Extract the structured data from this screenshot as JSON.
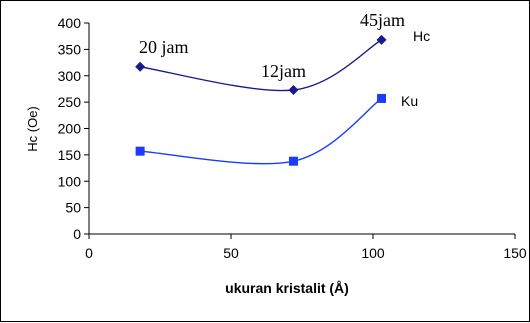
{
  "chart_data": {
    "type": "line",
    "xlabel": "ukuran kristalit (Å)",
    "ylabel": "Hc (Oe)",
    "xlim": [
      0,
      150
    ],
    "ylim": [
      0,
      400
    ],
    "x_ticks": [
      0,
      50,
      100,
      150
    ],
    "y_ticks": [
      0,
      50,
      100,
      150,
      200,
      250,
      300,
      350,
      400
    ],
    "grid": false,
    "series": [
      {
        "name": "Hc",
        "marker": "diamond",
        "color": "#1a1a8c",
        "points": [
          {
            "x": 18,
            "y": 317
          },
          {
            "x": 72,
            "y": 273
          },
          {
            "x": 103,
            "y": 368
          }
        ]
      },
      {
        "name": "Ku",
        "marker": "square",
        "color": "#1a3cff",
        "points": [
          {
            "x": 18,
            "y": 157
          },
          {
            "x": 72,
            "y": 138
          },
          {
            "x": 103,
            "y": 257
          }
        ]
      }
    ],
    "annotations": [
      "20 jam",
      "12jam",
      "45jam"
    ]
  }
}
